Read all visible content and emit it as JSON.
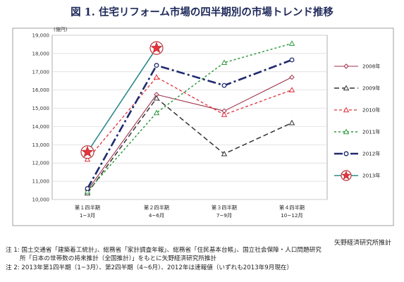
{
  "title": "図 1. 住宅リフォーム市場の四半期別の市場トレンド推移",
  "chart_data": {
    "type": "line",
    "unit_label": "(億円)",
    "categories": [
      {
        "line1": "第１四半期",
        "line2": "1~3月"
      },
      {
        "line1": "第２四半期",
        "line2": "4~6月"
      },
      {
        "line1": "第３四半期",
        "line2": "7~9月"
      },
      {
        "line1": "第４四半期",
        "line2": "10~12月"
      }
    ],
    "ylim": [
      10000,
      19000
    ],
    "yticks": [
      "10,000",
      "11,000",
      "12,000",
      "13,000",
      "14,000",
      "15,000",
      "16,000",
      "17,000",
      "18,000",
      "19,000"
    ],
    "grid": true,
    "legend_position": "right",
    "series": [
      {
        "name": "2008年",
        "values": [
          10500,
          15750,
          14850,
          16700
        ],
        "color": "#a0304a",
        "dash": "",
        "width": 1.1,
        "marker": "diamond"
      },
      {
        "name": "2009年",
        "values": [
          10350,
          15550,
          12500,
          14200
        ],
        "color": "#333333",
        "dash": "7,4",
        "width": 1.5,
        "marker": "triangle"
      },
      {
        "name": "2010年",
        "values": [
          12200,
          16700,
          14650,
          16000
        ],
        "color": "#e0303a",
        "dash": "4,3",
        "width": 1.3,
        "marker": "triangle"
      },
      {
        "name": "2011年",
        "values": [
          10450,
          14750,
          17500,
          18550
        ],
        "color": "#2e9a3e",
        "dash": "3,3",
        "width": 1.5,
        "marker": "triangle"
      },
      {
        "name": "2012年",
        "values": [
          10600,
          17350,
          16250,
          17650
        ],
        "color": "#1f2a6e",
        "dash": "12,4,3,4",
        "width": 2.6,
        "marker": "circle"
      },
      {
        "name": "2013年",
        "values": [
          12600,
          18300,
          null,
          null
        ],
        "color": "#2e8a8a",
        "dash": "",
        "width": 1.6,
        "marker": "star"
      }
    ]
  },
  "source": "矢野経済研究所推計",
  "notes": [
    "注 1: 国土交通省「建築着工統計」、総務省「家計調査年報」、総務省「住民基本台帳」、国立社会保障・人口問題研究",
    "所「日本の世帯数の将来推計（全国推計）」をもとに矢野経済研究所推計",
    "注 2: 2013年第1四半期（1~3月）、第2四半期（4~6月）、2012年は速報値（いずれも2013年9月現在）"
  ],
  "colors": {
    "star_fill": "#e8343a",
    "star_ring": "#c0303a",
    "frame": "#888888",
    "grid": "#d8d8d8"
  }
}
